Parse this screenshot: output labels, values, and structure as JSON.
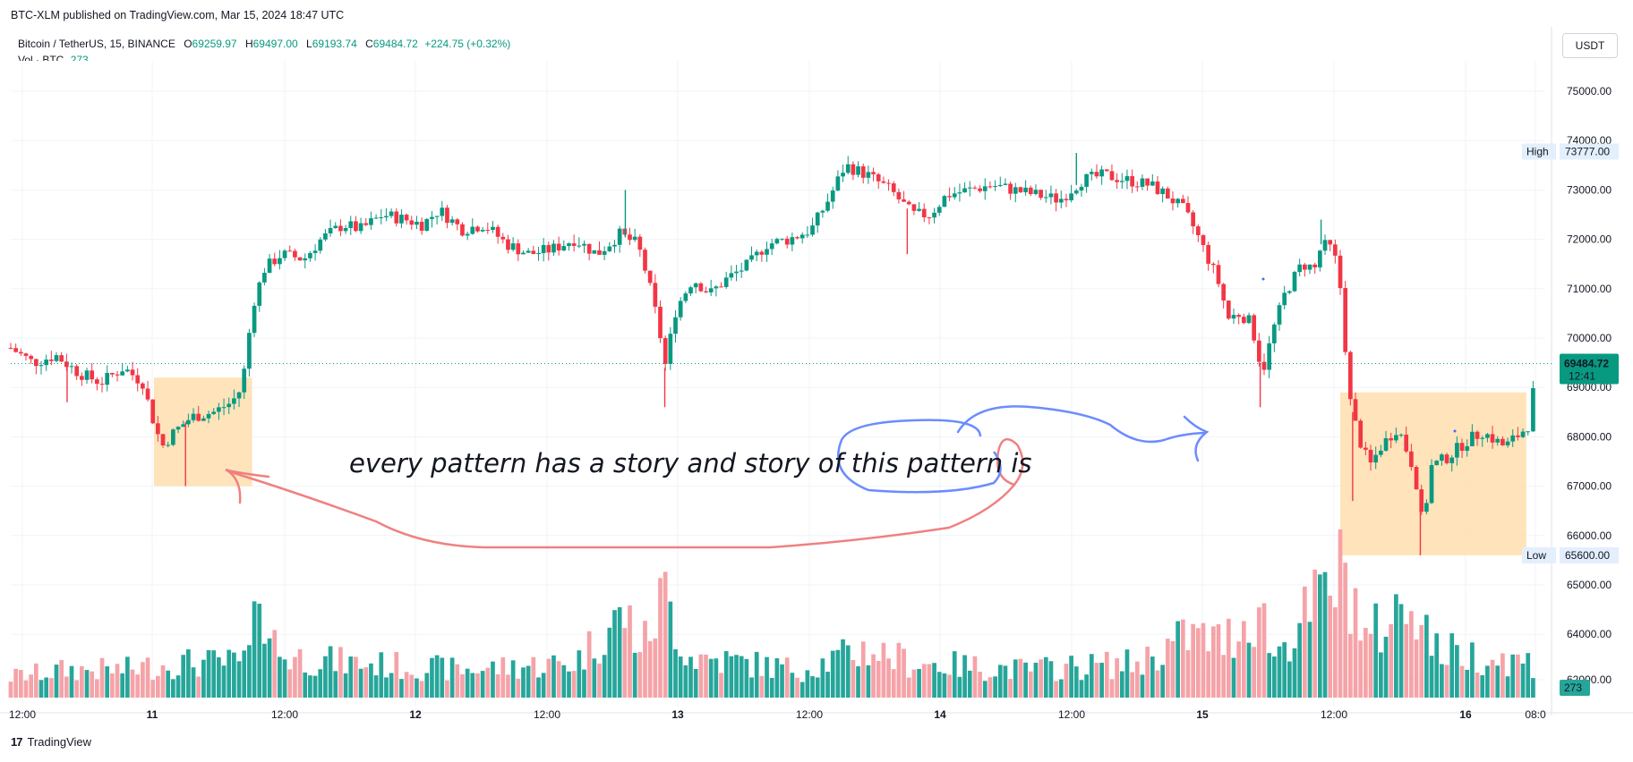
{
  "header": {
    "caption": "BTC-XLM published on TradingView.com, Mar 15, 2024 18:47 UTC"
  },
  "legend": {
    "symbol": "Bitcoin / TetherUS, 15, BINANCE",
    "open_label": "O",
    "open": "69259.97",
    "high_label": "H",
    "high": "69497.00",
    "low_label": "L",
    "low": "69193.74",
    "close_label": "C",
    "close": "69484.72",
    "change": "+224.75 (+0.32%)",
    "volume_label": "Vol · BTC",
    "volume": "273"
  },
  "currency_button": "USDT",
  "footer": {
    "brand": "TradingView"
  },
  "chart_data": {
    "type": "candlestick",
    "y_axis": {
      "min": 62000,
      "max": 75000,
      "ticks": [
        "75000.00",
        "74000.00",
        "73000.00",
        "72000.00",
        "71000.00",
        "70000.00",
        "69000.00",
        "68000.00",
        "67000.00",
        "66000.00",
        "65000.00",
        "64000.00",
        "62000.00"
      ]
    },
    "x_axis": {
      "ticks": [
        "12:00",
        "11",
        "12:00",
        "12",
        "12:00",
        "13",
        "12:00",
        "14",
        "12:00",
        "15",
        "12:00",
        "16",
        "08:0"
      ]
    },
    "markers": {
      "high": {
        "label": "High",
        "value": "73777.00"
      },
      "low": {
        "label": "Low",
        "value": "65600.00"
      },
      "last_price": {
        "value": "69484.72",
        "countdown": "12:41"
      },
      "last_volume": "273"
    },
    "colors": {
      "up": "#089981",
      "down": "#f23645",
      "volume_up": "#26a69a",
      "volume_down": "#f5a3a8",
      "box_fill": "#ffe0b2",
      "arrow_red": "#f08080",
      "arrow_blue": "#6b8cff"
    },
    "price_path": [
      [
        0,
        69800
      ],
      [
        20,
        69500
      ],
      [
        40,
        69650
      ],
      [
        60,
        69300
      ],
      [
        80,
        69100
      ],
      [
        100,
        69400
      ],
      [
        117,
        69100
      ],
      [
        124,
        68500
      ],
      [
        134,
        67800
      ],
      [
        145,
        68100
      ],
      [
        160,
        68400
      ],
      [
        180,
        68500
      ],
      [
        196,
        68700
      ],
      [
        205,
        69000
      ],
      [
        215,
        70700
      ],
      [
        225,
        71400
      ],
      [
        240,
        71700
      ],
      [
        260,
        71600
      ],
      [
        275,
        72000
      ],
      [
        295,
        72300
      ],
      [
        310,
        72200
      ],
      [
        330,
        72500
      ],
      [
        350,
        72400
      ],
      [
        365,
        72300
      ],
      [
        380,
        72600
      ],
      [
        400,
        72200
      ],
      [
        420,
        72300
      ],
      [
        440,
        71900
      ],
      [
        460,
        71700
      ],
      [
        480,
        71800
      ],
      [
        500,
        72000
      ],
      [
        520,
        71700
      ],
      [
        540,
        72100
      ],
      [
        556,
        71900
      ],
      [
        565,
        71200
      ],
      [
        575,
        70200
      ],
      [
        580,
        69400
      ],
      [
        590,
        70600
      ],
      [
        605,
        71200
      ],
      [
        620,
        70900
      ],
      [
        635,
        71200
      ],
      [
        655,
        71500
      ],
      [
        670,
        71900
      ],
      [
        690,
        72000
      ],
      [
        710,
        72200
      ],
      [
        725,
        72800
      ],
      [
        740,
        73500
      ],
      [
        760,
        73300
      ],
      [
        780,
        73000
      ],
      [
        800,
        72500
      ],
      [
        815,
        72500
      ],
      [
        830,
        72900
      ],
      [
        850,
        73000
      ],
      [
        870,
        73100
      ],
      [
        890,
        73000
      ],
      [
        910,
        72900
      ],
      [
        930,
        72800
      ],
      [
        950,
        73200
      ],
      [
        970,
        73300
      ],
      [
        990,
        73200
      ],
      [
        1010,
        73100
      ],
      [
        1025,
        72900
      ],
      [
        1040,
        72600
      ],
      [
        1050,
        72200
      ],
      [
        1060,
        71700
      ],
      [
        1070,
        71200
      ],
      [
        1080,
        70400
      ],
      [
        1090,
        70500
      ],
      [
        1100,
        70300
      ],
      [
        1110,
        69300
      ],
      [
        1120,
        70200
      ],
      [
        1130,
        70900
      ],
      [
        1145,
        71500
      ],
      [
        1158,
        71400
      ],
      [
        1162,
        71900
      ],
      [
        1172,
        71800
      ],
      [
        1178,
        71300
      ],
      [
        1182,
        70200
      ],
      [
        1188,
        68700
      ],
      [
        1195,
        68000
      ],
      [
        1205,
        67400
      ],
      [
        1215,
        67800
      ],
      [
        1230,
        68200
      ],
      [
        1245,
        67300
      ],
      [
        1252,
        66200
      ],
      [
        1260,
        67400
      ],
      [
        1275,
        67600
      ],
      [
        1290,
        67900
      ],
      [
        1305,
        68100
      ],
      [
        1325,
        67800
      ],
      [
        1340,
        68100
      ],
      [
        1348,
        68300
      ],
      [
        1352,
        69484
      ]
    ],
    "wicks": [
      [
        50,
        68700
      ],
      [
        155,
        67000
      ],
      [
        545,
        73000
      ],
      [
        580,
        68600
      ],
      [
        795,
        71700
      ],
      [
        1108,
        68600
      ],
      [
        1162,
        72400
      ],
      [
        1190,
        66700
      ],
      [
        1250,
        65600
      ],
      [
        945,
        73750
      ]
    ],
    "volume_path": [
      [
        0,
        0.15
      ],
      [
        50,
        0.2
      ],
      [
        100,
        0.2
      ],
      [
        150,
        0.25
      ],
      [
        205,
        0.25
      ],
      [
        215,
        0.35
      ],
      [
        220,
        1.0
      ],
      [
        228,
        0.5
      ],
      [
        240,
        0.3
      ],
      [
        300,
        0.25
      ],
      [
        400,
        0.2
      ],
      [
        500,
        0.25
      ],
      [
        530,
        0.5
      ],
      [
        545,
        0.6
      ],
      [
        560,
        0.35
      ],
      [
        580,
        0.75
      ],
      [
        600,
        0.3
      ],
      [
        700,
        0.2
      ],
      [
        760,
        0.35
      ],
      [
        800,
        0.25
      ],
      [
        900,
        0.2
      ],
      [
        1000,
        0.25
      ],
      [
        1045,
        0.45
      ],
      [
        1075,
        0.4
      ],
      [
        1108,
        0.65
      ],
      [
        1120,
        0.3
      ],
      [
        1180,
        0.9
      ],
      [
        1190,
        0.8
      ],
      [
        1200,
        0.4
      ],
      [
        1250,
        0.75
      ],
      [
        1260,
        0.35
      ],
      [
        1300,
        0.3
      ],
      [
        1350,
        0.25
      ]
    ],
    "annotation_boxes": [
      {
        "x0": 0.0,
        "note": "consolidation-left",
        "start_bar": 127,
        "end_bar": 214,
        "top": 69200,
        "bottom": 67000
      },
      {
        "x0": 0.0,
        "note": "consolidation-right",
        "start_bar": 1179,
        "end_bar": 1344,
        "top": 68900,
        "bottom": 65600
      }
    ],
    "annotation_text": "every pattern has a story and story of this pattern is"
  }
}
